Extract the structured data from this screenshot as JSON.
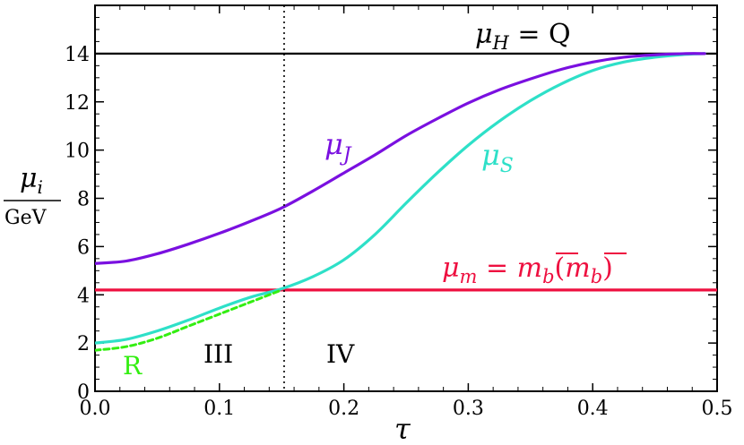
{
  "chart_data": {
    "type": "line",
    "xlabel": "τ",
    "ylabel": {
      "numerator": "μ",
      "numerator_sub": "i",
      "denominator": "GeV"
    },
    "xlim": [
      0.0,
      0.5
    ],
    "ylim": [
      0,
      16
    ],
    "x_ticks": [
      0.0,
      0.1,
      0.2,
      0.3,
      0.4,
      0.5
    ],
    "x_tick_labels": [
      "0.0",
      "0.1",
      "0.2",
      "0.3",
      "0.4",
      "0.5"
    ],
    "y_ticks": [
      0,
      2,
      4,
      6,
      8,
      10,
      12,
      14
    ],
    "y_tick_labels": [
      "0",
      "2",
      "4",
      "6",
      "8",
      "10",
      "12",
      "14"
    ],
    "grid": false,
    "vertical_marker_x": 0.152,
    "series": [
      {
        "key": "mu_H",
        "name": "μH = Q",
        "label_parts": {
          "base": "μ",
          "sub": "H",
          "rest": " = Q"
        },
        "color": "#000000",
        "style": "solid",
        "x": [
          0.0,
          0.5
        ],
        "y": [
          14.0,
          14.0
        ]
      },
      {
        "key": "mu_J",
        "name": "μJ",
        "label_parts": {
          "base": "μ",
          "sub": "J"
        },
        "color": "#7a10e0",
        "style": "solid",
        "x": [
          0.0,
          0.025,
          0.05,
          0.075,
          0.1,
          0.125,
          0.15,
          0.175,
          0.2,
          0.225,
          0.25,
          0.275,
          0.3,
          0.325,
          0.35,
          0.375,
          0.4,
          0.425,
          0.45,
          0.475,
          0.49
        ],
        "y": [
          5.3,
          5.4,
          5.7,
          6.1,
          6.55,
          7.05,
          7.6,
          8.3,
          9.05,
          9.8,
          10.6,
          11.3,
          11.95,
          12.5,
          12.95,
          13.35,
          13.65,
          13.85,
          13.95,
          14.0,
          14.0
        ]
      },
      {
        "key": "mu_S",
        "name": "μS",
        "label_parts": {
          "base": "μ",
          "sub": "S"
        },
        "color": "#2ee0c8",
        "style": "solid",
        "x": [
          0.0,
          0.025,
          0.05,
          0.075,
          0.1,
          0.125,
          0.15,
          0.175,
          0.2,
          0.225,
          0.25,
          0.275,
          0.3,
          0.325,
          0.35,
          0.375,
          0.4,
          0.425,
          0.45,
          0.475,
          0.49
        ],
        "y": [
          2.0,
          2.15,
          2.5,
          2.95,
          3.45,
          3.9,
          4.25,
          4.75,
          5.45,
          6.5,
          7.8,
          9.05,
          10.2,
          11.2,
          12.05,
          12.75,
          13.3,
          13.65,
          13.85,
          13.97,
          14.0
        ]
      },
      {
        "key": "R",
        "name": "R",
        "label_parts": {
          "base": "R"
        },
        "color": "#33ee11",
        "style": "dashed",
        "x": [
          0.0,
          0.025,
          0.05,
          0.075,
          0.1,
          0.125,
          0.15
        ],
        "y": [
          1.7,
          1.85,
          2.2,
          2.7,
          3.2,
          3.7,
          4.2
        ]
      },
      {
        "key": "mu_m",
        "name": "μm = m̄b(m̄b)",
        "label_parts": {
          "base": "μ",
          "sub": "m",
          "rest": " = "
        },
        "color": "#ee1040",
        "style": "solid",
        "x": [
          0.0,
          0.5
        ],
        "y": [
          4.2,
          4.2
        ]
      }
    ],
    "annotations": [
      {
        "text": "III",
        "x": 0.1,
        "y": 2.2
      },
      {
        "text": "IV",
        "x": 0.2,
        "y": 2.2
      }
    ]
  }
}
